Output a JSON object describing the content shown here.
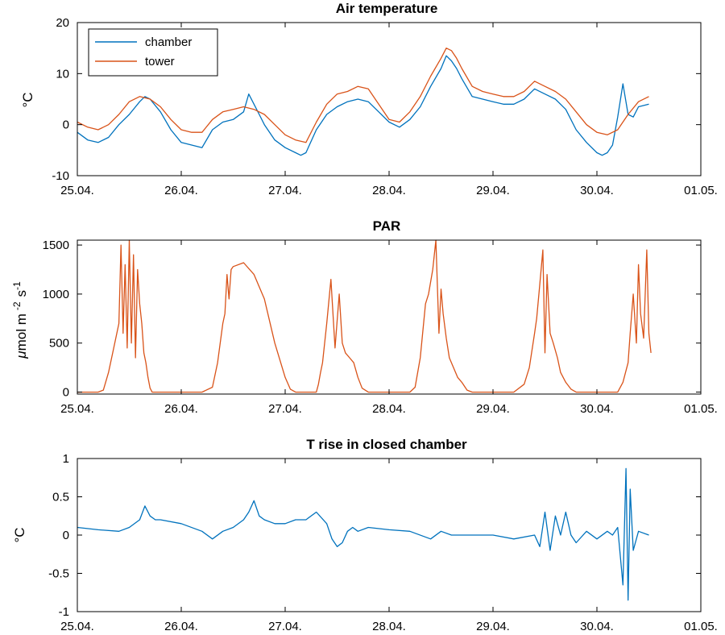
{
  "chart_data": [
    {
      "type": "line",
      "title": "Air temperature",
      "ylabel_symbol": "°C",
      "ylim": [
        -10,
        20
      ],
      "yticks": [
        -10,
        0,
        10,
        20
      ],
      "xlim": [
        0,
        6
      ],
      "xticks": [
        0,
        1,
        2,
        3,
        4,
        5,
        6
      ],
      "xtick_labels": [
        "25.04.",
        "26.04.",
        "27.04.",
        "28.04.",
        "29.04.",
        "30.04.",
        "01.05."
      ],
      "legend_position": "top-left",
      "colors": {
        "chamber": "#0072BD",
        "tower": "#D95319"
      },
      "series": [
        {
          "name": "chamber",
          "color": "#0072BD",
          "x": [
            0,
            0.1,
            0.2,
            0.3,
            0.4,
            0.5,
            0.6,
            0.65,
            0.7,
            0.8,
            0.9,
            1.0,
            1.1,
            1.2,
            1.3,
            1.4,
            1.5,
            1.6,
            1.65,
            1.7,
            1.75,
            1.8,
            1.9,
            2.0,
            2.1,
            2.15,
            2.2,
            2.3,
            2.4,
            2.5,
            2.6,
            2.7,
            2.8,
            2.9,
            3.0,
            3.1,
            3.2,
            3.3,
            3.4,
            3.5,
            3.55,
            3.6,
            3.65,
            3.7,
            3.8,
            3.9,
            4.0,
            4.1,
            4.2,
            4.3,
            4.4,
            4.5,
            4.6,
            4.7,
            4.8,
            4.9,
            5.0,
            5.05,
            5.1,
            5.15,
            5.2,
            5.25,
            5.3,
            5.35,
            5.4,
            5.5
          ],
          "y": [
            -1.5,
            -3.0,
            -3.5,
            -2.5,
            0.0,
            2.0,
            4.5,
            5.5,
            5.0,
            2.5,
            -1.0,
            -3.5,
            -4.0,
            -4.5,
            -1.0,
            0.5,
            1.0,
            2.5,
            6.0,
            4.0,
            2.0,
            0.0,
            -3.0,
            -4.5,
            -5.5,
            -6.0,
            -5.5,
            -1.0,
            2.0,
            3.5,
            4.5,
            5.0,
            4.5,
            2.5,
            0.5,
            -0.5,
            1.0,
            3.5,
            7.5,
            11.0,
            13.5,
            12.5,
            11.0,
            9.0,
            5.5,
            5.0,
            4.5,
            4.0,
            4.0,
            5.0,
            7.0,
            6.0,
            5.0,
            3.0,
            -1.0,
            -3.5,
            -5.5,
            -6.0,
            -5.5,
            -4.0,
            1.5,
            8.0,
            2.0,
            1.5,
            3.5,
            4.0
          ]
        },
        {
          "name": "tower",
          "color": "#D95319",
          "x": [
            0,
            0.1,
            0.2,
            0.3,
            0.4,
            0.5,
            0.6,
            0.7,
            0.8,
            0.9,
            1.0,
            1.1,
            1.2,
            1.3,
            1.4,
            1.5,
            1.6,
            1.7,
            1.8,
            1.9,
            2.0,
            2.1,
            2.2,
            2.3,
            2.4,
            2.5,
            2.6,
            2.7,
            2.8,
            2.9,
            3.0,
            3.1,
            3.2,
            3.3,
            3.4,
            3.5,
            3.55,
            3.6,
            3.65,
            3.7,
            3.8,
            3.9,
            4.0,
            4.1,
            4.2,
            4.3,
            4.4,
            4.5,
            4.6,
            4.7,
            4.8,
            4.9,
            5.0,
            5.1,
            5.2,
            5.3,
            5.4,
            5.5
          ],
          "y": [
            0.5,
            -0.5,
            -1.0,
            0.0,
            2.0,
            4.5,
            5.5,
            5.0,
            3.5,
            1.0,
            -1.0,
            -1.5,
            -1.5,
            1.0,
            2.5,
            3.0,
            3.5,
            3.0,
            2.0,
            0.0,
            -2.0,
            -3.0,
            -3.5,
            0.5,
            4.0,
            6.0,
            6.5,
            7.5,
            7.0,
            4.0,
            1.0,
            0.5,
            2.5,
            5.5,
            9.5,
            13.0,
            15.0,
            14.5,
            13.0,
            11.0,
            7.5,
            6.5,
            6.0,
            5.5,
            5.5,
            6.5,
            8.5,
            7.5,
            6.5,
            5.0,
            2.5,
            0.0,
            -1.5,
            -2.0,
            -1.0,
            2.0,
            4.5,
            5.5
          ]
        }
      ]
    },
    {
      "type": "line",
      "title": "PAR",
      "ylabel_mu": "μ",
      "ylabel_text": "mol m",
      "ylabel_exp1": "-2",
      "ylabel_s": "s",
      "ylabel_exp2": "-1",
      "ylim": [
        -20,
        1550
      ],
      "yticks": [
        0,
        500,
        1000,
        1500
      ],
      "xlim": [
        0,
        6
      ],
      "xticks": [
        0,
        1,
        2,
        3,
        4,
        5,
        6
      ],
      "xtick_labels": [
        "25.04.",
        "26.04.",
        "27.04.",
        "28.04.",
        "29.04.",
        "30.04.",
        "01.05."
      ],
      "color": "#D95319",
      "series": [
        {
          "color": "#D95319",
          "x": [
            0,
            0.2,
            0.25,
            0.3,
            0.35,
            0.4,
            0.42,
            0.44,
            0.46,
            0.48,
            0.5,
            0.52,
            0.54,
            0.56,
            0.58,
            0.6,
            0.62,
            0.64,
            0.66,
            0.68,
            0.7,
            0.72,
            0.75,
            0.8,
            0.85,
            1.0,
            1.2,
            1.3,
            1.35,
            1.4,
            1.42,
            1.44,
            1.46,
            1.48,
            1.5,
            1.6,
            1.7,
            1.8,
            1.9,
            2.0,
            2.05,
            2.1,
            2.2,
            2.3,
            2.32,
            2.34,
            2.36,
            2.4,
            2.44,
            2.48,
            2.52,
            2.55,
            2.58,
            2.62,
            2.66,
            2.7,
            2.74,
            2.8,
            2.85,
            3.0,
            3.2,
            3.25,
            3.3,
            3.35,
            3.38,
            3.42,
            3.45,
            3.48,
            3.5,
            3.52,
            3.55,
            3.58,
            3.62,
            3.66,
            3.7,
            3.75,
            3.8,
            3.85,
            4.0,
            4.2,
            4.3,
            4.35,
            4.4,
            4.42,
            4.45,
            4.48,
            4.5,
            4.52,
            4.55,
            4.58,
            4.62,
            4.65,
            4.7,
            4.75,
            4.8,
            4.85,
            5.0,
            5.2,
            5.25,
            5.3,
            5.32,
            5.35,
            5.38,
            5.4,
            5.42,
            5.45,
            5.48,
            5.5,
            5.52
          ],
          "y": [
            0,
            0,
            20,
            200,
            450,
            700,
            1500,
            600,
            1300,
            450,
            1550,
            500,
            1400,
            350,
            1250,
            900,
            700,
            400,
            300,
            150,
            40,
            0,
            0,
            0,
            0,
            0,
            0,
            50,
            300,
            700,
            800,
            1200,
            950,
            1250,
            1280,
            1320,
            1200,
            950,
            500,
            150,
            30,
            0,
            0,
            0,
            80,
            200,
            300,
            700,
            1150,
            450,
            1000,
            500,
            400,
            350,
            300,
            150,
            40,
            0,
            0,
            0,
            0,
            50,
            350,
            900,
            1000,
            1250,
            1550,
            600,
            1050,
            800,
            550,
            350,
            250,
            150,
            100,
            20,
            0,
            0,
            0,
            0,
            80,
            250,
            600,
            750,
            1100,
            1450,
            400,
            1200,
            600,
            500,
            350,
            200,
            100,
            30,
            0,
            0,
            0,
            0,
            100,
            300,
            600,
            1000,
            500,
            1300,
            800,
            550,
            1450,
            600,
            400
          ]
        }
      ]
    },
    {
      "type": "line",
      "title": "T rise in closed chamber",
      "ylabel_symbol": "°C",
      "ylim": [
        -1,
        1
      ],
      "yticks": [
        -1,
        -0.5,
        0,
        0.5,
        1
      ],
      "ytick_labels": [
        "-1",
        "-0.5",
        "0",
        "0.5",
        "1"
      ],
      "xlim": [
        0,
        6
      ],
      "xticks": [
        0,
        1,
        2,
        3,
        4,
        5,
        6
      ],
      "xtick_labels": [
        "25.04.",
        "26.04.",
        "27.04.",
        "28.04.",
        "29.04.",
        "30.04.",
        "01.05."
      ],
      "color": "#0072BD",
      "series": [
        {
          "color": "#0072BD",
          "x": [
            0,
            0.2,
            0.4,
            0.5,
            0.6,
            0.65,
            0.7,
            0.75,
            0.8,
            1.0,
            1.2,
            1.3,
            1.4,
            1.5,
            1.6,
            1.65,
            1.7,
            1.75,
            1.8,
            1.9,
            2.0,
            2.1,
            2.2,
            2.3,
            2.4,
            2.45,
            2.5,
            2.55,
            2.6,
            2.65,
            2.7,
            2.8,
            3.0,
            3.2,
            3.4,
            3.5,
            3.6,
            3.8,
            4.0,
            4.2,
            4.4,
            4.45,
            4.5,
            4.55,
            4.6,
            4.65,
            4.7,
            4.75,
            4.8,
            4.9,
            5.0,
            5.1,
            5.15,
            5.2,
            5.25,
            5.28,
            5.3,
            5.32,
            5.35,
            5.4,
            5.5
          ],
          "y": [
            0.1,
            0.07,
            0.05,
            0.1,
            0.2,
            0.38,
            0.25,
            0.2,
            0.2,
            0.15,
            0.05,
            -0.05,
            0.05,
            0.1,
            0.2,
            0.3,
            0.45,
            0.25,
            0.2,
            0.15,
            0.15,
            0.2,
            0.2,
            0.3,
            0.15,
            -0.05,
            -0.15,
            -0.1,
            0.05,
            0.1,
            0.05,
            0.1,
            0.07,
            0.05,
            -0.05,
            0.05,
            0.0,
            0.0,
            0.0,
            -0.05,
            0.0,
            -0.15,
            0.3,
            -0.2,
            0.25,
            0.0,
            0.3,
            0.0,
            -0.1,
            0.05,
            -0.05,
            0.05,
            0.0,
            0.1,
            -0.65,
            0.87,
            -0.85,
            0.6,
            -0.2,
            0.05,
            0.0
          ]
        }
      ]
    }
  ]
}
